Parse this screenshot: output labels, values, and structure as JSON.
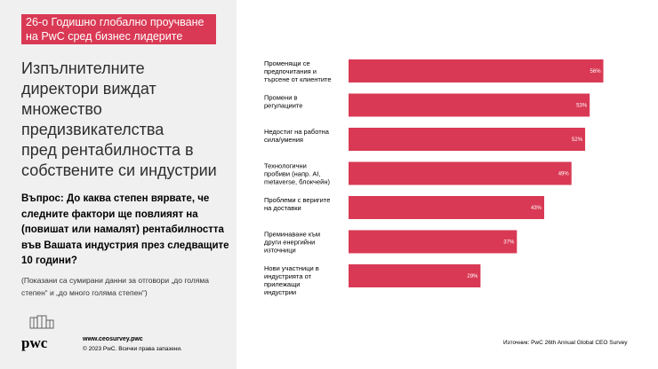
{
  "tag": {
    "line1": "26-о Годишно глобално проучване",
    "line2": "на PwC сред бизнес лидерите"
  },
  "headline": "Изпълнителните\nдиректори виждат\nмножество\nпредизвикателства\nпред рентабилността в\nсобствените си индустрии",
  "question": "Въпрос: До каква степен вярвате, че следните фактори ще повлияят на (повишат или намалят) рентабилността във Вашата индустрия през следващите 10 години?",
  "note": "(Показани са сумирани данни за отговори „до голяма степен“ и „до много голяма степен“)",
  "logo": {
    "text": "pwc"
  },
  "footer": {
    "site": "www.ceosurvey.pwc",
    "copyright": "© 2023 PwC. Всички права запазени."
  },
  "source": "Източник: PwC 26th Annual Global CEO Survey",
  "colors": {
    "bar": "#d93954",
    "tag": "#d93954",
    "panel": "#f0f0f0"
  },
  "chart_data": {
    "type": "bar",
    "orientation": "horizontal",
    "categories": [
      [
        "Променящи се",
        "предпочитания и",
        "търсене от клиентите"
      ],
      [
        "Промени в",
        "регулациите"
      ],
      [
        "Недостиг на работна",
        "сила/умения"
      ],
      [
        "Технологични",
        "пробиви (напр. AI,",
        "metaverse, блокчейн)"
      ],
      [
        "Проблеми с веригите",
        "на доставки"
      ],
      [
        "Преминаване към",
        "други енергийни",
        "източници"
      ],
      [
        "Нови участници в",
        "индустрията от",
        "прилежащи",
        "индустрии"
      ]
    ],
    "values": [
      56,
      53,
      52,
      49,
      43,
      37,
      29
    ],
    "value_labels": [
      "56%",
      "53%",
      "52%",
      "49%",
      "43%",
      "37%",
      "29%"
    ],
    "unit": "%",
    "xlim": [
      0,
      60
    ],
    "grid": false,
    "legend": "none"
  }
}
